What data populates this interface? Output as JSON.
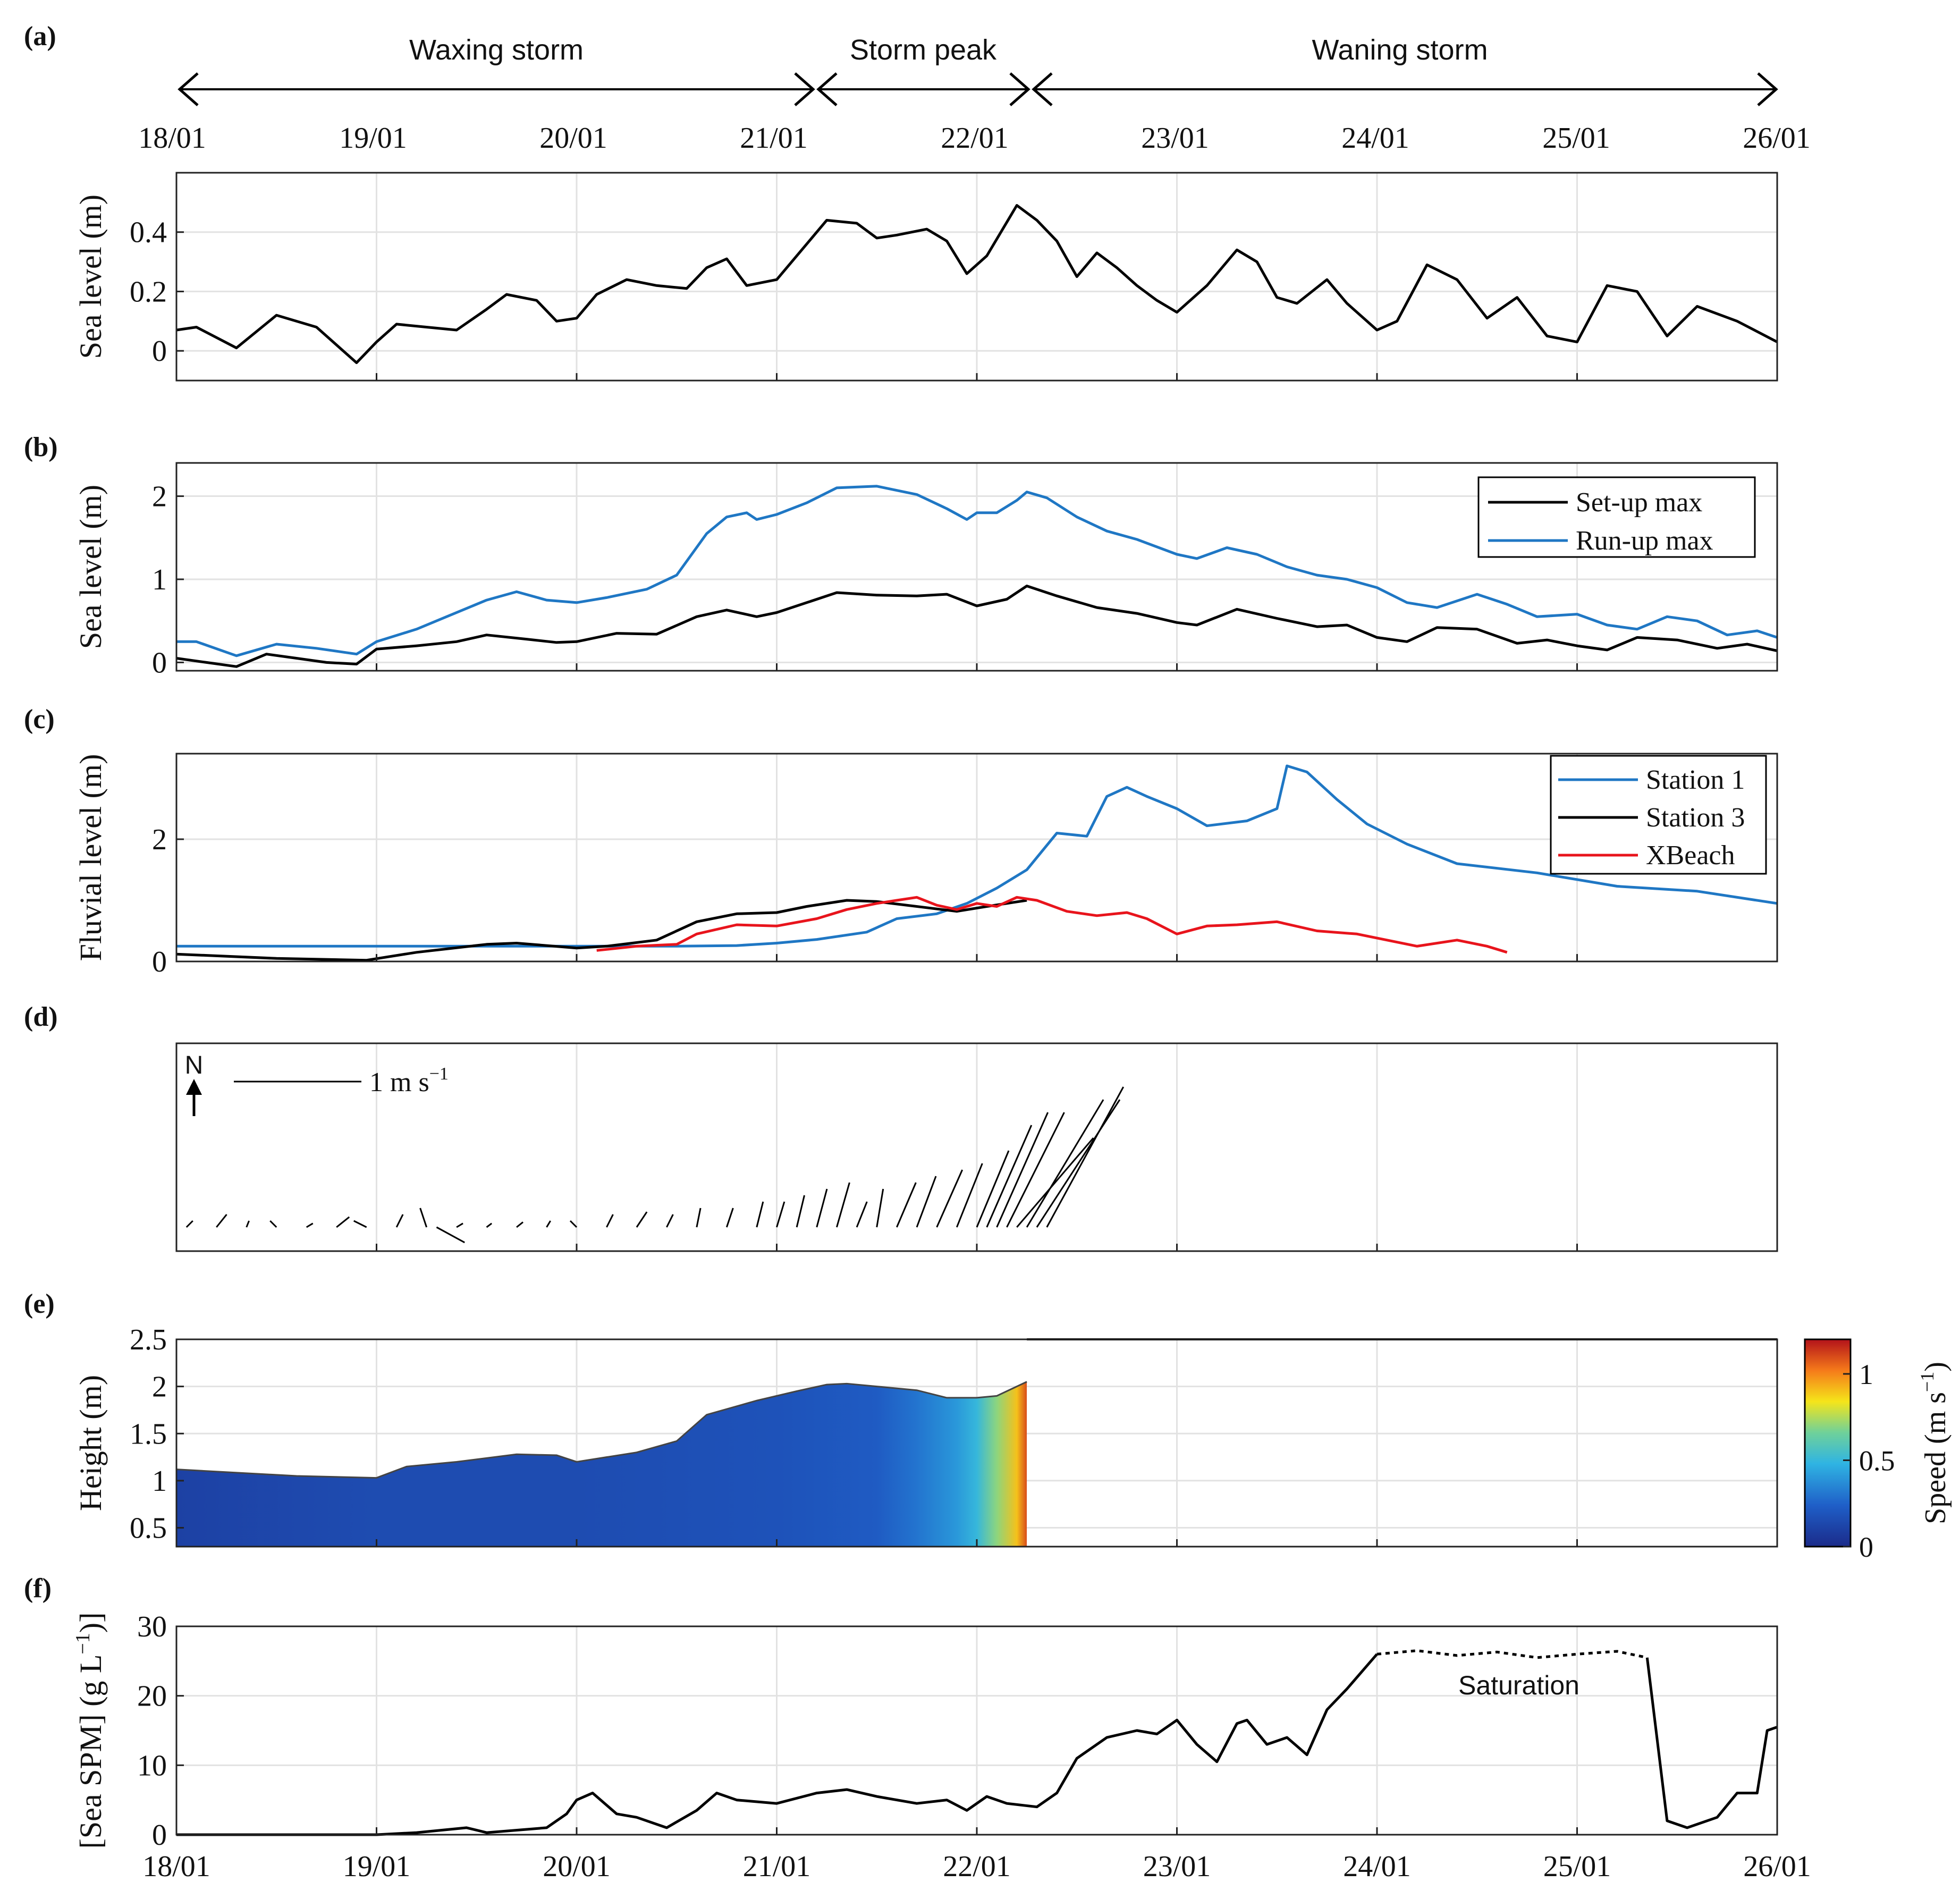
{
  "x_ticks": [
    "18/01",
    "19/01",
    "20/01",
    "21/01",
    "22/01",
    "23/01",
    "24/01",
    "25/01",
    "26/01"
  ],
  "phases": [
    {
      "label": "Waxing storm",
      "start": 0,
      "end": 3.2
    },
    {
      "label": "Storm peak",
      "start": 3.2,
      "end": 4.25
    },
    {
      "label": "Waning storm",
      "start": 4.25,
      "end": 8
    }
  ],
  "chart_data": [
    {
      "panel": "(a)",
      "type": "line",
      "ylabel": "Sea level (m)",
      "ylim": [
        -0.1,
        0.6
      ],
      "yticks": [
        0,
        0.2,
        0.4
      ],
      "grid": true,
      "series": [
        {
          "color": "#000000",
          "x": [
            0,
            0.1,
            0.3,
            0.5,
            0.7,
            0.85,
            0.9,
            1.0,
            1.1,
            1.25,
            1.4,
            1.55,
            1.65,
            1.8,
            1.9,
            2.0,
            2.1,
            2.25,
            2.4,
            2.55,
            2.65,
            2.75,
            2.85,
            3.0,
            3.1,
            3.25,
            3.4,
            3.5,
            3.6,
            3.75,
            3.85,
            3.95,
            4.05,
            4.2,
            4.3,
            4.4,
            4.5,
            4.6,
            4.7,
            4.8,
            4.9,
            5.0,
            5.15,
            5.3,
            5.4,
            5.5,
            5.6,
            5.75,
            5.85,
            6.0,
            6.1,
            6.25,
            6.4,
            6.55,
            6.7,
            6.85,
            7.0,
            7.15,
            7.3,
            7.45,
            7.6,
            7.8,
            8.0
          ],
          "y": [
            0.07,
            0.08,
            0.01,
            0.12,
            0.08,
            -0.01,
            -0.04,
            0.03,
            0.09,
            0.08,
            0.07,
            0.14,
            0.19,
            0.17,
            0.1,
            0.11,
            0.19,
            0.24,
            0.22,
            0.21,
            0.28,
            0.31,
            0.22,
            0.24,
            0.32,
            0.44,
            0.43,
            0.38,
            0.39,
            0.41,
            0.37,
            0.26,
            0.32,
            0.49,
            0.44,
            0.37,
            0.25,
            0.33,
            0.28,
            0.22,
            0.17,
            0.13,
            0.22,
            0.34,
            0.3,
            0.18,
            0.16,
            0.24,
            0.16,
            0.07,
            0.1,
            0.29,
            0.24,
            0.11,
            0.18,
            0.05,
            0.03,
            0.22,
            0.2,
            0.05,
            0.15,
            0.1,
            0.03
          ]
        }
      ]
    },
    {
      "panel": "(b)",
      "type": "line",
      "ylabel": "Sea level (m)",
      "ylim": [
        -0.1,
        2.4
      ],
      "yticks": [
        0,
        1,
        2
      ],
      "grid": true,
      "legend_position": "top-right",
      "series": [
        {
          "name": "Set-up max",
          "color": "#000000",
          "x": [
            0,
            0.15,
            0.3,
            0.45,
            0.6,
            0.75,
            0.9,
            1.0,
            1.2,
            1.4,
            1.55,
            1.75,
            1.9,
            2.0,
            2.2,
            2.4,
            2.6,
            2.75,
            2.9,
            3.0,
            3.15,
            3.3,
            3.5,
            3.7,
            3.85,
            4.0,
            4.15,
            4.25,
            4.4,
            4.6,
            4.8,
            5.0,
            5.1,
            5.3,
            5.5,
            5.7,
            5.85,
            6.0,
            6.15,
            6.3,
            6.5,
            6.7,
            6.85,
            7.0,
            7.15,
            7.3,
            7.5,
            7.7,
            7.85,
            8.0
          ],
          "y": [
            0.05,
            0.0,
            -0.05,
            0.1,
            0.05,
            0.0,
            -0.02,
            0.16,
            0.2,
            0.25,
            0.33,
            0.28,
            0.24,
            0.25,
            0.35,
            0.34,
            0.55,
            0.63,
            0.55,
            0.6,
            0.72,
            0.84,
            0.81,
            0.8,
            0.82,
            0.68,
            0.76,
            0.92,
            0.8,
            0.66,
            0.59,
            0.48,
            0.45,
            0.64,
            0.53,
            0.43,
            0.45,
            0.3,
            0.25,
            0.42,
            0.4,
            0.23,
            0.27,
            0.2,
            0.15,
            0.3,
            0.27,
            0.17,
            0.22,
            0.14
          ]
        },
        {
          "name": "Run-up max",
          "color": "#1f77c4",
          "x": [
            0,
            0.1,
            0.3,
            0.5,
            0.7,
            0.9,
            1.0,
            1.2,
            1.35,
            1.55,
            1.7,
            1.85,
            2.0,
            2.15,
            2.35,
            2.5,
            2.65,
            2.75,
            2.85,
            2.9,
            3.0,
            3.15,
            3.3,
            3.5,
            3.7,
            3.85,
            3.95,
            4.0,
            4.1,
            4.2,
            4.25,
            4.35,
            4.5,
            4.65,
            4.8,
            5.0,
            5.1,
            5.25,
            5.4,
            5.55,
            5.7,
            5.85,
            6.0,
            6.15,
            6.3,
            6.5,
            6.65,
            6.8,
            7.0,
            7.15,
            7.3,
            7.45,
            7.6,
            7.75,
            7.9,
            8.0
          ],
          "y": [
            0.25,
            0.25,
            0.08,
            0.22,
            0.17,
            0.1,
            0.25,
            0.4,
            0.55,
            0.75,
            0.85,
            0.75,
            0.72,
            0.78,
            0.88,
            1.05,
            1.55,
            1.75,
            1.8,
            1.72,
            1.78,
            1.92,
            2.1,
            2.12,
            2.02,
            1.85,
            1.72,
            1.8,
            1.8,
            1.95,
            2.05,
            1.98,
            1.75,
            1.58,
            1.48,
            1.3,
            1.25,
            1.38,
            1.3,
            1.15,
            1.05,
            1.0,
            0.9,
            0.72,
            0.66,
            0.82,
            0.7,
            0.55,
            0.58,
            0.45,
            0.4,
            0.55,
            0.5,
            0.33,
            0.38,
            0.3
          ]
        }
      ]
    },
    {
      "panel": "(c)",
      "type": "line",
      "ylabel": "Fluvial level (m)",
      "ylim": [
        0,
        3.4
      ],
      "yticks": [
        0,
        2
      ],
      "grid": true,
      "legend_position": "top-right",
      "series": [
        {
          "name": "Station 1",
          "color": "#1f77c4",
          "x": [
            0,
            2.5,
            2.8,
            3.0,
            3.2,
            3.45,
            3.6,
            3.8,
            3.95,
            4.1,
            4.25,
            4.4,
            4.55,
            4.65,
            4.75,
            4.85,
            5.0,
            5.15,
            5.35,
            5.5,
            5.55,
            5.65,
            5.8,
            5.95,
            6.15,
            6.4,
            6.8,
            7.2,
            7.6,
            8.0
          ],
          "y": [
            0.25,
            0.25,
            0.26,
            0.3,
            0.36,
            0.48,
            0.7,
            0.78,
            0.95,
            1.2,
            1.5,
            2.1,
            2.05,
            2.7,
            2.85,
            2.7,
            2.5,
            2.22,
            2.3,
            2.5,
            3.2,
            3.1,
            2.65,
            2.25,
            1.92,
            1.6,
            1.45,
            1.23,
            1.15,
            0.95
          ]
        },
        {
          "name": "Station 3",
          "color": "#000000",
          "x": [
            0,
            0.5,
            0.95,
            1.2,
            1.55,
            1.7,
            2.0,
            2.15,
            2.4,
            2.6,
            2.8,
            3.0,
            3.15,
            3.35,
            3.5,
            3.75,
            3.9,
            4.05,
            4.25
          ],
          "y": [
            0.12,
            0.05,
            0.02,
            0.15,
            0.28,
            0.3,
            0.22,
            0.25,
            0.35,
            0.65,
            0.78,
            0.8,
            0.9,
            1.0,
            0.98,
            0.88,
            0.82,
            0.9,
            1.0
          ]
        },
        {
          "name": "XBeach",
          "color": "#e8141c",
          "x": [
            2.1,
            2.3,
            2.5,
            2.6,
            2.8,
            3.0,
            3.2,
            3.35,
            3.5,
            3.6,
            3.7,
            3.8,
            3.9,
            4.0,
            4.1,
            4.2,
            4.3,
            4.45,
            4.6,
            4.75,
            4.85,
            5.0,
            5.15,
            5.3,
            5.5,
            5.7,
            5.9,
            6.05,
            6.2,
            6.4,
            6.55,
            6.65
          ],
          "y": [
            0.18,
            0.25,
            0.28,
            0.45,
            0.6,
            0.58,
            0.7,
            0.85,
            0.95,
            1.0,
            1.05,
            0.92,
            0.85,
            0.95,
            0.9,
            1.05,
            1.0,
            0.82,
            0.75,
            0.8,
            0.7,
            0.45,
            0.58,
            0.6,
            0.65,
            0.5,
            0.45,
            0.35,
            0.25,
            0.35,
            0.25,
            0.15
          ]
        }
      ]
    },
    {
      "panel": "(d)",
      "type": "stick",
      "north_label": "N",
      "scale_label": "1 m s",
      "scale_exp": "−1",
      "grid": true,
      "vectors": {
        "t": [
          0.05,
          0.2,
          0.35,
          0.5,
          0.65,
          0.8,
          0.95,
          1.1,
          1.25,
          1.3,
          1.4,
          1.55,
          1.7,
          1.85,
          2.0,
          2.15,
          2.3,
          2.45,
          2.6,
          2.75,
          2.9,
          3.0,
          3.1,
          3.2,
          3.3,
          3.4,
          3.5,
          3.6,
          3.7,
          3.8,
          3.9,
          4.0,
          4.05,
          4.1,
          4.15,
          4.2,
          4.25,
          4.3,
          4.35
        ],
        "u": [
          0.05,
          0.08,
          0.02,
          -0.05,
          0.05,
          0.1,
          -0.1,
          0.05,
          -0.05,
          0.22,
          0.05,
          0.04,
          0.05,
          0.03,
          -0.05,
          0.05,
          0.08,
          0.05,
          0.03,
          0.05,
          0.05,
          0.06,
          0.06,
          0.08,
          0.1,
          0.08,
          0.05,
          0.15,
          0.15,
          0.2,
          0.2,
          0.25,
          0.35,
          0.4,
          0.45,
          0.6,
          0.6,
          0.65,
          0.6
        ],
        "v": [
          0.05,
          0.1,
          0.05,
          0.05,
          0.03,
          0.08,
          0.05,
          0.1,
          0.15,
          -0.12,
          0.03,
          0.03,
          0.04,
          0.05,
          0.05,
          0.1,
          0.12,
          0.1,
          0.15,
          0.15,
          0.2,
          0.2,
          0.25,
          0.3,
          0.35,
          0.2,
          0.3,
          0.35,
          0.4,
          0.45,
          0.5,
          0.6,
          0.8,
          0.9,
          0.9,
          0.7,
          1.0,
          1.0,
          1.1
        ]
      }
    },
    {
      "panel": "(e)",
      "type": "heatmap",
      "ylabel": "Height (m)",
      "ylim": [
        0.3,
        2.5
      ],
      "yticks": [
        0.5,
        1,
        1.5,
        2,
        2.5
      ],
      "colorbar_label": "Speed (m s",
      "colorbar_exp": "−1",
      "colorbar_ticks": [
        0,
        0.5,
        1
      ],
      "clim": [
        0,
        1.2
      ],
      "grid": true,
      "surface": {
        "x": [
          0,
          0.6,
          1.0,
          1.15,
          1.4,
          1.7,
          1.9,
          2.0,
          2.3,
          2.5,
          2.65,
          2.9,
          3.1,
          3.25,
          3.35,
          3.5,
          3.7,
          3.85,
          4.0,
          4.1,
          4.25
        ],
        "y": [
          1.12,
          1.05,
          1.03,
          1.15,
          1.2,
          1.28,
          1.27,
          1.2,
          1.3,
          1.42,
          1.7,
          1.85,
          1.95,
          2.02,
          2.03,
          2.0,
          1.96,
          1.88,
          1.88,
          1.9,
          2.05
        ]
      },
      "speed_profile": {
        "x": [
          0,
          1.0,
          2.0,
          3.0,
          3.5,
          3.7,
          3.8,
          3.9,
          4.0,
          4.1,
          4.2,
          4.25
        ],
        "v": [
          0.1,
          0.15,
          0.15,
          0.18,
          0.22,
          0.3,
          0.35,
          0.4,
          0.5,
          0.7,
          0.9,
          1.1
        ]
      }
    },
    {
      "panel": "(f)",
      "type": "line",
      "ylabel": "[Sea SPM] (g L",
      "ylabel_exp": "−1",
      "ylabel_end": "]",
      "ylim": [
        0,
        30
      ],
      "yticks": [
        0,
        10,
        20,
        30
      ],
      "grid": true,
      "annotation": "Saturation",
      "series": [
        {
          "color": "#000000",
          "x": [
            0,
            1.0,
            1.2,
            1.45,
            1.55,
            1.85,
            1.95,
            2.0,
            2.08,
            2.2,
            2.3,
            2.45,
            2.6,
            2.7,
            2.8,
            3.0,
            3.2,
            3.35,
            3.5,
            3.7,
            3.85,
            3.95,
            4.05,
            4.15,
            4.3,
            4.4,
            4.5,
            4.65,
            4.8,
            4.9,
            5.0,
            5.1,
            5.2,
            5.3,
            5.35,
            5.45,
            5.55,
            5.65,
            5.75,
            5.85,
            6.0
          ],
          "y": [
            0,
            0,
            0.3,
            1.0,
            0.3,
            1.0,
            3.0,
            5.0,
            6.0,
            3.0,
            2.5,
            1.0,
            3.5,
            6.0,
            5.0,
            4.5,
            6.0,
            6.5,
            5.5,
            4.5,
            5.0,
            3.5,
            5.5,
            4.5,
            4.0,
            6.0,
            11.0,
            14.0,
            15.0,
            14.5,
            16.5,
            13.0,
            10.5,
            16.0,
            16.5,
            13.0,
            14.0,
            11.5,
            18.0,
            21.0,
            26.0
          ]
        },
        {
          "color": "#000000",
          "dashed": true,
          "x": [
            6.0,
            6.2,
            6.4,
            6.6,
            6.8,
            7.0,
            7.2,
            7.35
          ],
          "y": [
            26.0,
            26.5,
            25.8,
            26.3,
            25.5,
            26.0,
            26.4,
            25.5
          ]
        },
        {
          "color": "#000000",
          "x": [
            7.35,
            7.45,
            7.55,
            7.7,
            7.8,
            7.9,
            7.95,
            8.0
          ],
          "y": [
            25.5,
            2.0,
            1.0,
            2.5,
            6.0,
            6.0,
            15.0,
            15.5
          ]
        }
      ]
    }
  ]
}
